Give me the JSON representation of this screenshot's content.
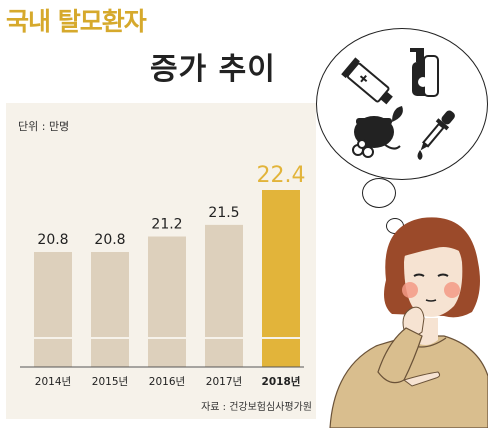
{
  "header": {
    "title_line1": "국내 탈모환자",
    "title_line2": "증가 추이"
  },
  "chart_data": {
    "type": "bar",
    "unit_label": "단위 : 만명",
    "categories": [
      "2014년",
      "2015년",
      "2016년",
      "2017년",
      "2018년"
    ],
    "values": [
      20.8,
      20.8,
      21.2,
      21.5,
      22.4
    ],
    "value_labels": [
      "20.8",
      "20.8",
      "21.2",
      "21.5",
      "22.4"
    ],
    "highlight_index": 4,
    "colors": {
      "normal_bar": "#ddd0bc",
      "highlight_bar": "#e2b43a",
      "normal_value_text": "#222222",
      "highlight_value_text": "#e2b43a",
      "panel_bg": "#f6f2ea"
    },
    "source": "자료 : 건강보험심사평가원"
  },
  "illustration": {
    "icons": [
      "ointment-tube-icon",
      "pump-bottle-icon",
      "herbal-jar-icon",
      "dropper-icon"
    ],
    "colors": {
      "sweater": "#d9be8e",
      "hair": "#9b4a2a",
      "skin": "#f6e3d2",
      "cheek": "#f39a86"
    }
  }
}
